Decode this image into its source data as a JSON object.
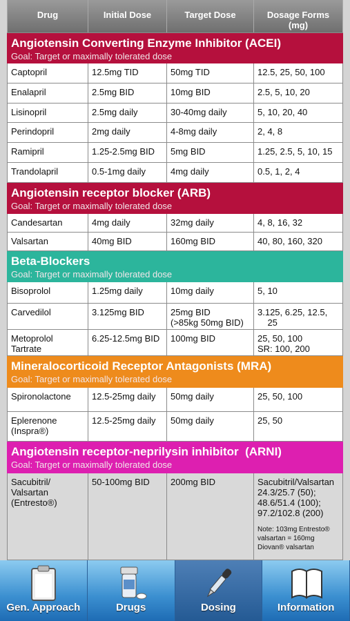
{
  "header": {
    "columns": [
      "Drug",
      "Initial Dose",
      "Target Dose",
      "Dosage Forms\n(mg)"
    ]
  },
  "sections": [
    {
      "title": "Angiotensin Converting Enzyme Inhibitor (ACEI)",
      "goal": "Goal: Target or maximally tolerated dose",
      "rows": [
        [
          "Captopril",
          "12.5mg TID",
          "50mg TID",
          "12.5, 25, 50, 100"
        ],
        [
          "Enalapril",
          "2.5mg BID",
          "10mg BID",
          "2.5, 5, 10, 20"
        ],
        [
          "Lisinopril",
          "2.5mg daily",
          "30-40mg daily",
          "5, 10, 20, 40"
        ],
        [
          "Perindopril",
          "2mg daily",
          "4-8mg daily",
          "2, 4, 8"
        ],
        [
          "Ramipril",
          "1.25-2.5mg BID",
          "5mg BID",
          "1.25, 2.5, 5, 10, 15"
        ],
        [
          "Trandolapril",
          "0.5-1mg daily",
          "4mg daily",
          "0.5, 1, 2, 4"
        ]
      ]
    },
    {
      "title": "Angiotensin receptor blocker (ARB)",
      "goal": "Goal: Target or maximally tolerated dose",
      "rows": [
        [
          "Candesartan",
          "4mg daily",
          "32mg daily",
          "4, 8, 16, 32"
        ],
        [
          "Valsartan",
          "40mg BID",
          "160mg BID",
          "40, 80, 160, 320"
        ]
      ]
    },
    {
      "title": "Beta-Blockers",
      "goal": "Goal: Target or maximally tolerated dose",
      "rows": [
        [
          "Bisoprolol",
          "1.25mg daily",
          "10mg daily",
          "5, 10"
        ],
        [
          "Carvedilol",
          "3.125mg BID",
          "25mg BID\n(>85kg 50mg BID)",
          "3.125, 6.25, 12.5,\n    25"
        ],
        [
          "Metoprolol\nTartrate",
          "6.25-12.5mg BID",
          "100mg BID",
          "25, 50, 100\nSR: 100, 200"
        ]
      ]
    },
    {
      "title": "Mineralocorticoid Receptor Antagonists (MRA)",
      "goal": "Goal: Target or maximally tolerated dose",
      "rows": [
        [
          "Spironolactone",
          "12.5-25mg daily",
          "50mg daily",
          "25, 50, 100"
        ],
        [
          "Eplerenone\n(Inspra®)",
          "12.5-25mg daily",
          "50mg daily",
          "25, 50"
        ]
      ]
    },
    {
      "title": "Angiotensin receptor-neprilysin inhibitor  (ARNI)",
      "goal": "Goal: Target or maximally tolerated dose",
      "rows": [
        [
          "Sacubitril/\nValsartan\n(Entresto®)",
          "50-100mg BID",
          "200mg BID",
          "Sacubitril/Valsartan\n24.3/25.7 (50);\n48.6/51.4 (100);\n97.2/102.8 (200)"
        ]
      ],
      "note": "Note: 103mg Entresto®\nvalsartan = 160mg\nDiovan® valsartan"
    }
  ],
  "tabs": [
    "Gen. Approach",
    "Drugs",
    "Dosing",
    "Information"
  ]
}
